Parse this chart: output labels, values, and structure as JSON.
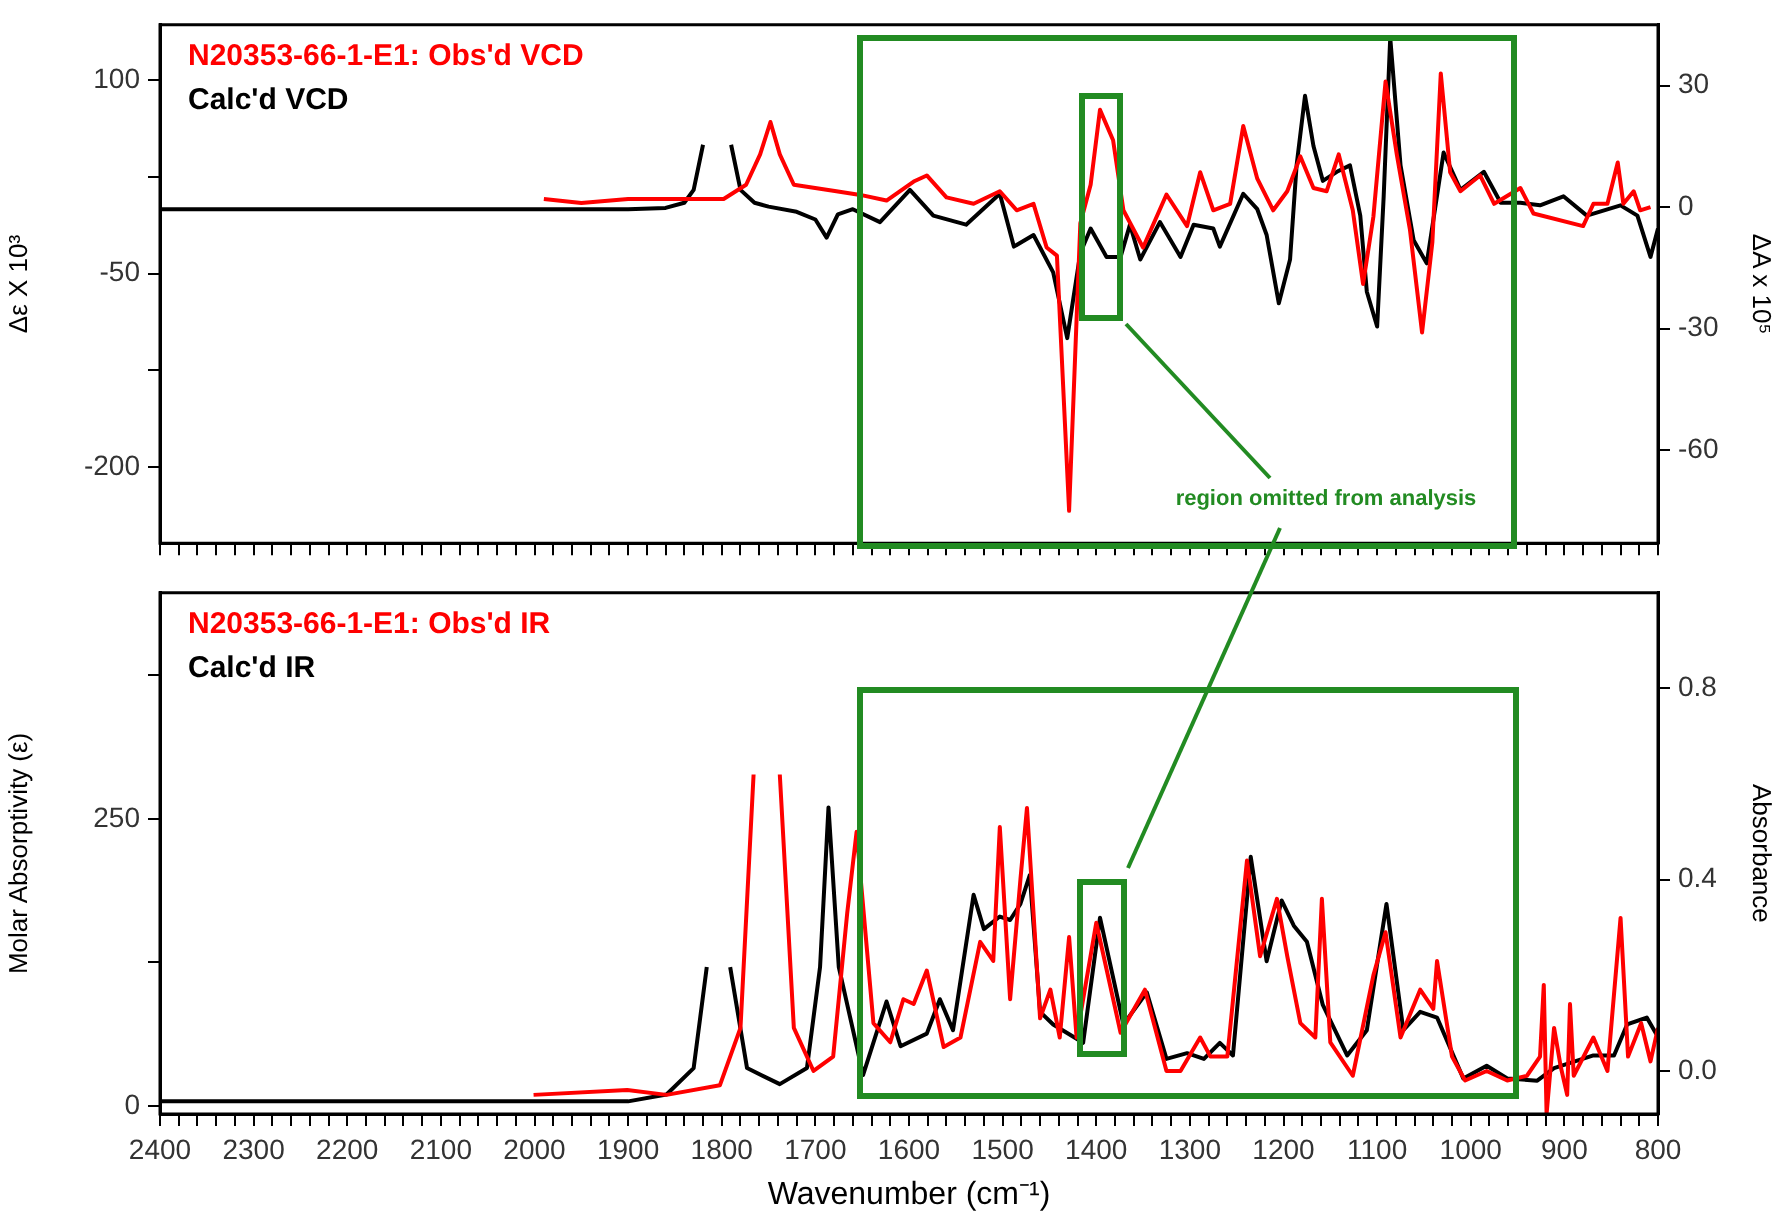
{
  "chart_data": [
    {
      "type": "line",
      "ylabel": "Δε X 10³",
      "y2label": "ΔA x 10⁵",
      "legend": "top left",
      "tick_labels": "y",
      "annotations": [
        "region omitted from analysis"
      ],
      "xlim": [
        2400,
        800
      ],
      "xticks": [
        2400,
        {
          "value": 2380,
          "label": null
        },
        {
          "value": 2360,
          "label": null
        },
        {
          "value": 2340,
          "label": null
        },
        {
          "value": 2320,
          "label": null
        },
        2300,
        {
          "value": 2280,
          "label": null
        },
        {
          "value": 2260,
          "label": null
        },
        {
          "value": 2240,
          "label": null
        },
        {
          "value": 2220,
          "label": null
        },
        2200,
        {
          "value": 2180,
          "label": null
        },
        {
          "value": 2160,
          "label": null
        },
        {
          "value": 2140,
          "label": null
        },
        {
          "value": 2120,
          "label": null
        },
        2100,
        {
          "value": 2080,
          "label": null
        },
        {
          "value": 2060,
          "label": null
        },
        {
          "value": 2040,
          "label": null
        },
        {
          "value": 2020,
          "label": null
        },
        2000,
        {
          "value": 1980,
          "label": null
        },
        {
          "value": 1960,
          "label": null
        },
        {
          "value": 1940,
          "label": null
        },
        {
          "value": 1920,
          "label": null
        },
        1900,
        {
          "value": 1880,
          "label": null
        },
        {
          "value": 1860,
          "label": null
        },
        {
          "value": 1840,
          "label": null
        },
        {
          "value": 1820,
          "label": null
        },
        1800,
        {
          "value": 1780,
          "label": null
        },
        {
          "value": 1760,
          "label": null
        },
        {
          "value": 1740,
          "label": null
        },
        {
          "value": 1720,
          "label": null
        },
        1700,
        {
          "value": 1680,
          "label": null
        },
        {
          "value": 1660,
          "label": null
        },
        {
          "value": 1640,
          "label": null
        },
        {
          "value": 1620,
          "label": null
        },
        1600,
        {
          "value": 1580,
          "label": null
        },
        {
          "value": 1560,
          "label": null
        },
        {
          "value": 1540,
          "label": null
        },
        {
          "value": 1520,
          "label": null
        },
        1500,
        {
          "value": 1480,
          "label": null
        },
        {
          "value": 1460,
          "label": null
        },
        {
          "value": 1440,
          "label": null
        },
        {
          "value": 1420,
          "label": null
        },
        1400,
        {
          "value": 1380,
          "label": null
        },
        {
          "value": 1360,
          "label": null
        },
        {
          "value": 1340,
          "label": null
        },
        {
          "value": 1320,
          "label": null
        },
        1300,
        {
          "value": 1280,
          "label": null
        },
        {
          "value": 1260,
          "label": null
        },
        {
          "value": 1240,
          "label": null
        },
        {
          "value": 1220,
          "label": null
        },
        1200,
        {
          "value": 1180,
          "label": null
        },
        {
          "value": 1160,
          "label": null
        },
        {
          "value": 1140,
          "label": null
        },
        {
          "value": 1120,
          "label": null
        },
        1100,
        {
          "value": 1080,
          "label": null
        },
        {
          "value": 1060,
          "label": null
        },
        {
          "value": 1040,
          "label": null
        },
        {
          "value": 1020,
          "label": null
        },
        1000,
        {
          "value": 980,
          "label": null
        },
        {
          "value": 960,
          "label": null
        },
        {
          "value": 940,
          "label": null
        },
        {
          "value": 920,
          "label": null
        },
        900,
        {
          "value": 880,
          "label": null
        },
        {
          "value": 860,
          "label": null
        },
        {
          "value": 840,
          "label": null
        },
        {
          "value": 820,
          "label": null
        },
        800
      ],
      "ylim": [
        -259,
        143
      ],
      "yticks": [
        100,
        {
          "value": 25,
          "label": null
        },
        -50,
        {
          "value": -125,
          "label": null
        },
        -200
      ],
      "y2lim": [
        -83,
        45
      ],
      "y2ticks": [
        30,
        0,
        -30,
        -60
      ],
      "series": [
        {
          "name": "N20353-66-1-E1: Obs'd VCD",
          "color": "#ff0000",
          "axis": "y2",
          "x": [
            1990,
            1950,
            1900,
            1850,
            1798,
            1774,
            1759,
            1748,
            1738,
            1723,
            1681,
            1652,
            1624,
            1595,
            1581,
            1560,
            1531,
            1503,
            1485,
            1467,
            1453,
            1442,
            1429,
            1417,
            1406,
            1396,
            1382,
            1371,
            1350,
            1325,
            1303,
            1289,
            1275,
            1257,
            1243,
            1228,
            1211,
            1196,
            1182,
            1168,
            1154,
            1141,
            1126,
            1115,
            1104,
            1091,
            1079,
            1065,
            1052,
            1041,
            1032,
            1022,
            1011,
            990,
            975,
            947,
            933,
            880,
            869,
            854,
            843,
            837,
            826,
            819,
            808
          ],
          "values": [
            2,
            1,
            2,
            2,
            2,
            5.5,
            13,
            21,
            13,
            5.5,
            4,
            3,
            1.6,
            6.3,
            7.8,
            2.4,
            0.8,
            3.9,
            -0.8,
            0.8,
            -10,
            -12,
            -75,
            -4,
            5.5,
            24,
            16.5,
            -0.8,
            -10,
            3.1,
            -4.7,
            8.6,
            -0.8,
            0.8,
            20,
            7,
            -0.8,
            3.9,
            12.5,
            4.7,
            3.9,
            13,
            -0.8,
            -19,
            -2.4,
            31,
            13,
            -5.5,
            -31,
            -8.7,
            33,
            8.6,
            3.9,
            7.8,
            0.8,
            4.7,
            -1.6,
            -4.7,
            0.8,
            0.8,
            11,
            0.8,
            3.9,
            -0.8,
            0
          ]
        },
        {
          "name": "Calc'd VCD",
          "color": "#000000",
          "axis": "y",
          "x": [
            2400,
            1900,
            1860,
            1840,
            1830,
            1820,
            1813,
            1799,
            1790,
            1780,
            1765,
            1750,
            1720,
            1700,
            1688,
            1676,
            1660,
            1631,
            1599,
            1574,
            1539,
            1503,
            1488,
            1467,
            1446,
            1431,
            1417,
            1406,
            1389,
            1374,
            1364,
            1353,
            1332,
            1310,
            1296,
            1275,
            1268,
            1243,
            1228,
            1218,
            1205,
            1193,
            1186,
            1177,
            1168,
            1158,
            1143,
            1129,
            1118,
            1111,
            1100,
            1093,
            1086,
            1075,
            1061,
            1047,
            1029,
            1011,
            986,
            968,
            947,
            926,
            901,
            876,
            840,
            822,
            808,
            800
          ],
          "values": [
            0,
            0,
            1,
            5,
            15,
            50,
            null,
            null,
            50,
            15,
            5,
            2,
            -2,
            -8,
            -22,
            -4,
            0,
            -10,
            15,
            -5,
            -12,
            12,
            -29,
            -20,
            -49,
            -100,
            -34,
            -15,
            -37,
            -37,
            -12,
            -39,
            -10,
            -37,
            -12,
            -15,
            -29,
            12,
            0,
            -20,
            -73,
            -39,
            34,
            88,
            49,
            22,
            29,
            34,
            -5,
            -64,
            -91,
            10,
            133,
            34,
            -24,
            -42,
            44,
            15,
            29,
            5,
            5,
            3,
            10,
            -5,
            3,
            -5,
            -37,
            -15
          ]
        }
      ]
    },
    {
      "type": "line",
      "xlabel": "Wavenumber (cm⁻¹)",
      "ylabel": "Molar Absorptivity (ε)",
      "y2label": "Absorbance",
      "legend": "top left",
      "xlim": [
        2400,
        800
      ],
      "xticks": [
        2400,
        {
          "value": 2380,
          "label": null
        },
        {
          "value": 2360,
          "label": null
        },
        {
          "value": 2340,
          "label": null
        },
        {
          "value": 2320,
          "label": null
        },
        2300,
        {
          "value": 2280,
          "label": null
        },
        {
          "value": 2260,
          "label": null
        },
        {
          "value": 2240,
          "label": null
        },
        {
          "value": 2220,
          "label": null
        },
        2200,
        {
          "value": 2180,
          "label": null
        },
        {
          "value": 2160,
          "label": null
        },
        {
          "value": 2140,
          "label": null
        },
        {
          "value": 2120,
          "label": null
        },
        2100,
        {
          "value": 2080,
          "label": null
        },
        {
          "value": 2060,
          "label": null
        },
        {
          "value": 2040,
          "label": null
        },
        {
          "value": 2020,
          "label": null
        },
        2000,
        {
          "value": 1980,
          "label": null
        },
        {
          "value": 1960,
          "label": null
        },
        {
          "value": 1940,
          "label": null
        },
        {
          "value": 1920,
          "label": null
        },
        1900,
        {
          "value": 1880,
          "label": null
        },
        {
          "value": 1860,
          "label": null
        },
        {
          "value": 1840,
          "label": null
        },
        {
          "value": 1820,
          "label": null
        },
        1800,
        {
          "value": 1780,
          "label": null
        },
        {
          "value": 1760,
          "label": null
        },
        {
          "value": 1740,
          "label": null
        },
        {
          "value": 1720,
          "label": null
        },
        1700,
        {
          "value": 1680,
          "label": null
        },
        {
          "value": 1660,
          "label": null
        },
        {
          "value": 1640,
          "label": null
        },
        {
          "value": 1620,
          "label": null
        },
        1600,
        {
          "value": 1580,
          "label": null
        },
        {
          "value": 1560,
          "label": null
        },
        {
          "value": 1540,
          "label": null
        },
        {
          "value": 1520,
          "label": null
        },
        1500,
        {
          "value": 1480,
          "label": null
        },
        {
          "value": 1460,
          "label": null
        },
        {
          "value": 1440,
          "label": null
        },
        {
          "value": 1420,
          "label": null
        },
        1400,
        {
          "value": 1380,
          "label": null
        },
        {
          "value": 1360,
          "label": null
        },
        {
          "value": 1340,
          "label": null
        },
        {
          "value": 1320,
          "label": null
        },
        1300,
        {
          "value": 1280,
          "label": null
        },
        {
          "value": 1260,
          "label": null
        },
        {
          "value": 1240,
          "label": null
        },
        {
          "value": 1220,
          "label": null
        },
        1200,
        {
          "value": 1180,
          "label": null
        },
        {
          "value": 1160,
          "label": null
        },
        {
          "value": 1140,
          "label": null
        },
        {
          "value": 1120,
          "label": null
        },
        1100,
        {
          "value": 1080,
          "label": null
        },
        {
          "value": 1060,
          "label": null
        },
        {
          "value": 1040,
          "label": null
        },
        {
          "value": 1020,
          "label": null
        },
        1000,
        {
          "value": 980,
          "label": null
        },
        {
          "value": 960,
          "label": null
        },
        {
          "value": 940,
          "label": null
        },
        {
          "value": 920,
          "label": null
        },
        900,
        {
          "value": 880,
          "label": null
        },
        {
          "value": 860,
          "label": null
        },
        {
          "value": 840,
          "label": null
        },
        {
          "value": 820,
          "label": null
        },
        800
      ],
      "ylim": [
        -7,
        447
      ],
      "yticks": [
        0,
        {
          "value": 125,
          "label": null
        },
        250,
        {
          "value": 375,
          "label": null
        }
      ],
      "y2lim": [
        -0.09,
        1.0
      ],
      "y2ticks": [
        {
          "value": 0,
          "label": "0.0"
        },
        0.4,
        0.8
      ],
      "series": [
        {
          "name": "N20353-66-1-E1: Obs'd IR",
          "color": "#ff0000",
          "axis": "y2",
          "x": [
            2001,
            1901,
            1859,
            1802,
            1780,
            1766,
            1757,
            1750,
            1738,
            1723,
            1702,
            1681,
            1666,
            1656,
            1638,
            1620,
            1606,
            1595,
            1581,
            1563,
            1545,
            1524,
            1510,
            1503,
            1492,
            1481,
            1474,
            1460,
            1449,
            1439,
            1429,
            1421,
            1400,
            1374,
            1348,
            1325,
            1310,
            1289,
            1278,
            1260,
            1239,
            1225,
            1207,
            1196,
            1182,
            1166,
            1159,
            1150,
            1126,
            1104,
            1091,
            1075,
            1054,
            1040,
            1036,
            1020,
            1006,
            983,
            961,
            940,
            926,
            922,
            919,
            911,
            904,
            897,
            894,
            890,
            869,
            854,
            840,
            832,
            818,
            808,
            800
          ],
          "values": [
            -0.05,
            -0.04,
            -0.05,
            -0.03,
            0.09,
            0.62,
            null,
            null,
            0.62,
            0.09,
            0,
            0.03,
            0.33,
            0.5,
            0.1,
            0.06,
            0.15,
            0.14,
            0.21,
            0.05,
            0.07,
            0.27,
            0.23,
            0.51,
            0.15,
            0.4,
            0.55,
            0.11,
            0.17,
            0.07,
            0.28,
            0.07,
            0.31,
            0.08,
            0.17,
            0,
            0,
            0.07,
            0.03,
            0.03,
            0.44,
            0.24,
            0.36,
            0.24,
            0.1,
            0.07,
            0.36,
            0.06,
            -0.01,
            0.2,
            0.29,
            0.07,
            0.17,
            0.13,
            0.23,
            0.03,
            -0.02,
            0,
            -0.02,
            -0.01,
            0.03,
            0.18,
            -0.09,
            0.09,
            0.01,
            -0.05,
            0.14,
            -0.01,
            0.07,
            0,
            0.32,
            0.03,
            0.1,
            0.02,
            0.09
          ]
        },
        {
          "name": "Calc'd IR",
          "color": "#000000",
          "axis": "y",
          "x": [
            2400,
            1900,
            1859,
            1830,
            1816,
            1808,
            1802,
            1791,
            1773,
            1738,
            1709,
            1695,
            1686,
            1675,
            1649,
            1624,
            1609,
            1581,
            1567,
            1553,
            1531,
            1520,
            1503,
            1492,
            1481,
            1471,
            1460,
            1446,
            1414,
            1396,
            1371,
            1346,
            1325,
            1303,
            1285,
            1268,
            1254,
            1235,
            1218,
            1202,
            1189,
            1175,
            1158,
            1132,
            1111,
            1090,
            1072,
            1054,
            1036,
            1008,
            983,
            961,
            929,
            911,
            869,
            847,
            833,
            812,
            800
          ],
          "values": [
            4,
            4,
            10,
            33,
            121,
            null,
            null,
            121,
            33,
            19,
            33,
            121,
            260,
            121,
            27,
            91,
            52,
            63,
            93,
            66,
            184,
            154,
            165,
            162,
            176,
            201,
            82,
            71,
            55,
            164,
            71,
            99,
            41,
            46,
            41,
            55,
            44,
            217,
            126,
            179,
            157,
            143,
            88,
            44,
            66,
            176,
            66,
            82,
            77,
            24,
            35,
            24,
            22,
            33,
            44,
            44,
            71,
            77,
            60
          ]
        }
      ]
    }
  ]
}
